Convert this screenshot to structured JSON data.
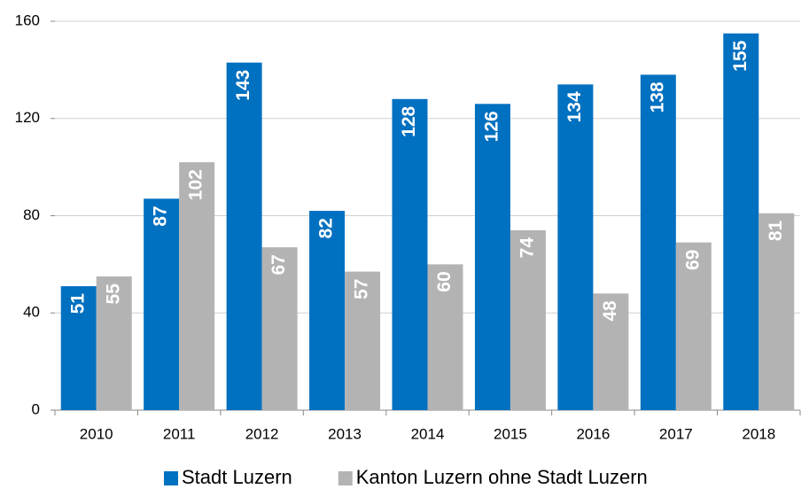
{
  "chart_data": {
    "type": "bar",
    "categories": [
      "2010",
      "2011",
      "2012",
      "2013",
      "2014",
      "2015",
      "2016",
      "2017",
      "2018"
    ],
    "series": [
      {
        "name": "Stadt Luzern",
        "color": "#0070c0",
        "values": [
          51,
          87,
          143,
          82,
          128,
          126,
          134,
          138,
          155
        ]
      },
      {
        "name": "Kanton Luzern ohne Stadt Luzern",
        "color": "#b3b3b3",
        "values": [
          55,
          102,
          67,
          57,
          60,
          74,
          48,
          69,
          81
        ]
      }
    ],
    "ylim": [
      0,
      160
    ],
    "yticks": [
      0,
      40,
      80,
      120,
      160
    ],
    "grid": true,
    "legend": "bottom"
  }
}
